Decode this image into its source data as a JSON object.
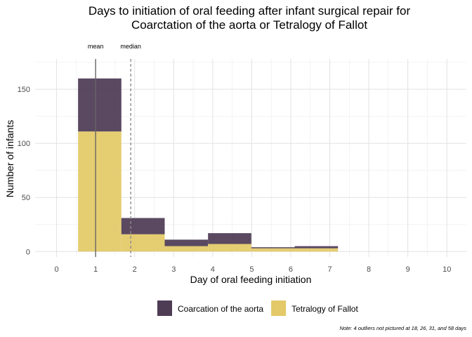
{
  "chart_data": {
    "type": "bar",
    "stacked": true,
    "title": [
      "Days to initiation of oral feeding after infant surgical repair for",
      "Coarctation of the aorta or Tetralogy of Fallot"
    ],
    "xlabel": "Day of oral feeding initiation",
    "ylabel": "Number of infants",
    "xlim": [
      -0.55,
      10.5
    ],
    "ylim": [
      -5,
      178
    ],
    "x_ticks": [
      0,
      1,
      2,
      3,
      4,
      5,
      6,
      7,
      8,
      9,
      10
    ],
    "y_ticks": [
      0,
      50,
      100,
      150
    ],
    "bins": [
      {
        "x0": 0.55,
        "x1": 1.66
      },
      {
        "x0": 1.66,
        "x1": 2.77
      },
      {
        "x0": 2.77,
        "x1": 3.88
      },
      {
        "x0": 3.88,
        "x1": 4.99
      },
      {
        "x0": 4.99,
        "x1": 6.1
      },
      {
        "x0": 6.1,
        "x1": 7.21
      }
    ],
    "series": [
      {
        "name": "Tetralogy of Fallot",
        "color": "#e3c967",
        "values": [
          111,
          16,
          5,
          7,
          3,
          3
        ]
      },
      {
        "name": "Coarcation of the aorta",
        "color": "#4e3b54",
        "values": [
          49,
          15,
          6,
          10,
          1,
          2
        ]
      }
    ],
    "reference_lines": [
      {
        "label": "mean",
        "x": 1.0,
        "style": "solid",
        "color": "#666666"
      },
      {
        "label": "median",
        "x": 1.9,
        "style": "dashed",
        "color": "#8c8c8c"
      }
    ],
    "legend": {
      "position": "bottom",
      "entries": [
        {
          "label": "Coarcation of the aorta",
          "color": "#4e3b54"
        },
        {
          "label": "Tetralogy of Fallot",
          "color": "#e3c967"
        }
      ]
    },
    "grid": true,
    "note": "Note: 4 outliers not pictured at 18, 26, 31, and 58 days"
  }
}
